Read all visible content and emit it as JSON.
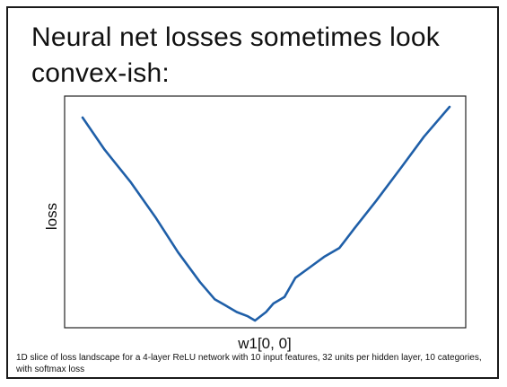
{
  "slide": {
    "title": "Neural net losses sometimes look convex-ish:",
    "caption": "1D slice of loss landscape for a 4-layer ReLU network with 10 input features, 32 units per hidden layer, 10 categories, with softmax loss"
  },
  "chart_data": {
    "type": "line",
    "title": "",
    "xlabel": "w1[0, 0]",
    "ylabel": "loss",
    "xlim": [
      0,
      1
    ],
    "ylim": [
      0,
      1
    ],
    "grid": false,
    "ticks": false,
    "line_color": "#1f5fa8",
    "series": [
      {
        "x": [
          0.0,
          0.06,
          0.13,
          0.2,
          0.26,
          0.32,
          0.36,
          0.39,
          0.42,
          0.45,
          0.47,
          0.5,
          0.52,
          0.55,
          0.58,
          0.62,
          0.66,
          0.7,
          0.74,
          0.8,
          0.87,
          0.93,
          1.0
        ],
        "y": [
          0.95,
          0.8,
          0.65,
          0.48,
          0.32,
          0.18,
          0.1,
          0.07,
          0.04,
          0.02,
          0.0,
          0.04,
          0.08,
          0.11,
          0.2,
          0.25,
          0.3,
          0.34,
          0.43,
          0.56,
          0.72,
          0.86,
          1.0
        ]
      }
    ]
  }
}
